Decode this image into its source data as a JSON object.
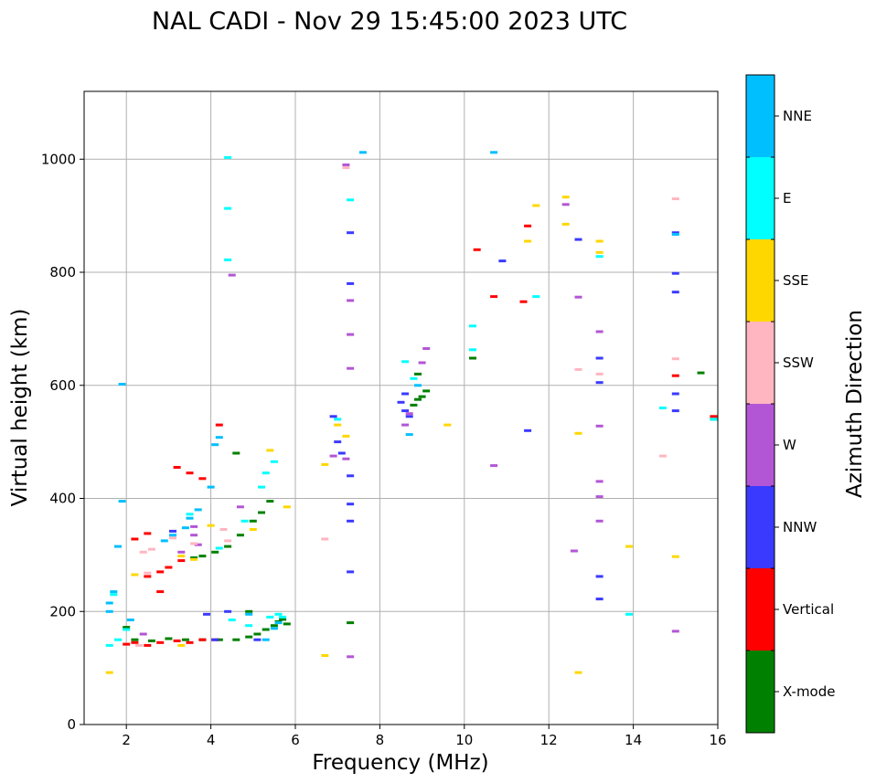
{
  "chart_data": {
    "type": "scatter",
    "title": "NAL CADI - Nov 29 15:45:00 2023 UTC",
    "xlabel": "Frequency (MHz)",
    "ylabel": "Virtual height (km)",
    "xlim": [
      1,
      16
    ],
    "ylim": [
      0,
      1120
    ],
    "xticks": [
      2,
      4,
      6,
      8,
      10,
      12,
      14,
      16
    ],
    "yticks": [
      0,
      200,
      400,
      600,
      800,
      1000
    ],
    "grid": true,
    "colorbar": {
      "label": "Azimuth Direction",
      "categories": [
        {
          "name": "X-mode",
          "color": "#008000"
        },
        {
          "name": "Vertical",
          "color": "#ff0000"
        },
        {
          "name": "NNW",
          "color": "#3a3aff"
        },
        {
          "name": "W",
          "color": "#b356d6"
        },
        {
          "name": "SSW",
          "color": "#ffb6c1"
        },
        {
          "name": "SSE",
          "color": "#ffd700"
        },
        {
          "name": "E",
          "color": "#00ffff"
        },
        {
          "name": "NNE",
          "color": "#00bfff"
        }
      ]
    },
    "series": [
      {
        "name": "X-mode",
        "points": [
          [
            2.2,
            150
          ],
          [
            2.6,
            148
          ],
          [
            3.0,
            152
          ],
          [
            3.4,
            150
          ],
          [
            3.8,
            150
          ],
          [
            4.2,
            150
          ],
          [
            4.6,
            150
          ],
          [
            4.9,
            155
          ],
          [
            5.1,
            160
          ],
          [
            5.3,
            168
          ],
          [
            5.5,
            175
          ],
          [
            5.6,
            182
          ],
          [
            5.7,
            186
          ],
          [
            5.8,
            178
          ],
          [
            3.6,
            295
          ],
          [
            3.8,
            298
          ],
          [
            4.1,
            305
          ],
          [
            4.4,
            315
          ],
          [
            4.7,
            335
          ],
          [
            5.0,
            360
          ],
          [
            5.2,
            375
          ],
          [
            5.4,
            395
          ],
          [
            8.9,
            575
          ],
          [
            9.0,
            580
          ],
          [
            9.1,
            590
          ],
          [
            8.8,
            565
          ],
          [
            8.9,
            620
          ],
          [
            10.2,
            648
          ],
          [
            7.3,
            180
          ],
          [
            15.9,
            540
          ],
          [
            15.6,
            622
          ],
          [
            4.6,
            480
          ],
          [
            4.9,
            200
          ],
          [
            2.0,
            172
          ]
        ]
      },
      {
        "name": "Vertical",
        "points": [
          [
            2.0,
            142
          ],
          [
            2.2,
            145
          ],
          [
            2.5,
            140
          ],
          [
            2.8,
            145
          ],
          [
            3.2,
            148
          ],
          [
            3.5,
            145
          ],
          [
            3.8,
            150
          ],
          [
            4.1,
            150
          ],
          [
            2.5,
            262
          ],
          [
            2.8,
            270
          ],
          [
            3.0,
            278
          ],
          [
            3.3,
            290
          ],
          [
            2.2,
            328
          ],
          [
            2.5,
            338
          ],
          [
            3.5,
            445
          ],
          [
            3.8,
            435
          ],
          [
            2.8,
            235
          ],
          [
            10.3,
            840
          ],
          [
            10.7,
            757
          ],
          [
            11.4,
            748
          ],
          [
            11.5,
            882
          ],
          [
            15.0,
            617
          ],
          [
            15.9,
            545
          ],
          [
            3.2,
            455
          ],
          [
            4.2,
            530
          ]
        ]
      },
      {
        "name": "NNW",
        "points": [
          [
            8.5,
            570
          ],
          [
            8.6,
            555
          ],
          [
            8.7,
            545
          ],
          [
            8.6,
            585
          ],
          [
            4.1,
            150
          ],
          [
            4.4,
            200
          ],
          [
            5.1,
            150
          ],
          [
            3.9,
            195
          ],
          [
            7.1,
            480
          ],
          [
            7.0,
            500
          ],
          [
            7.3,
            440
          ],
          [
            7.3,
            390
          ],
          [
            7.3,
            360
          ],
          [
            7.3,
            270
          ],
          [
            7.3,
            870
          ],
          [
            7.3,
            780
          ],
          [
            10.9,
            820
          ],
          [
            11.5,
            520
          ],
          [
            12.7,
            858
          ],
          [
            13.2,
            648
          ],
          [
            13.2,
            605
          ],
          [
            13.2,
            262
          ],
          [
            13.2,
            222
          ],
          [
            15.0,
            870
          ],
          [
            15.0,
            798
          ],
          [
            15.0,
            765
          ],
          [
            15.0,
            585
          ],
          [
            15.0,
            555
          ],
          [
            6.9,
            545
          ],
          [
            3.1,
            342
          ]
        ]
      },
      {
        "name": "W",
        "points": [
          [
            8.7,
            550
          ],
          [
            9.0,
            640
          ],
          [
            9.1,
            665
          ],
          [
            8.6,
            530
          ],
          [
            7.2,
            470
          ],
          [
            6.9,
            475
          ],
          [
            3.3,
            305
          ],
          [
            3.6,
            335
          ],
          [
            4.7,
            385
          ],
          [
            4.5,
            795
          ],
          [
            12.4,
            920
          ],
          [
            12.7,
            756
          ],
          [
            12.6,
            307
          ],
          [
            13.2,
            695
          ],
          [
            13.2,
            528
          ],
          [
            13.2,
            430
          ],
          [
            13.2,
            403
          ],
          [
            13.2,
            360
          ],
          [
            15.0,
            165
          ],
          [
            7.3,
            120
          ],
          [
            7.3,
            690
          ],
          [
            7.3,
            630
          ],
          [
            7.3,
            750
          ],
          [
            10.7,
            458
          ],
          [
            7.2,
            990
          ],
          [
            3.6,
            350
          ],
          [
            2.4,
            160
          ],
          [
            3.7,
            318
          ]
        ]
      },
      {
        "name": "SSW",
        "points": [
          [
            2.4,
            305
          ],
          [
            2.6,
            310
          ],
          [
            2.5,
            268
          ],
          [
            3.1,
            330
          ],
          [
            3.6,
            320
          ],
          [
            4.3,
            345
          ],
          [
            6.7,
            328
          ],
          [
            12.7,
            628
          ],
          [
            13.2,
            620
          ],
          [
            15.0,
            647
          ],
          [
            14.7,
            475
          ],
          [
            15.0,
            930
          ],
          [
            7.2,
            985
          ],
          [
            4.4,
            325
          ],
          [
            2.3,
            140
          ]
        ]
      },
      {
        "name": "SSE",
        "points": [
          [
            2.2,
            265
          ],
          [
            3.3,
            298
          ],
          [
            3.6,
            292
          ],
          [
            5.0,
            345
          ],
          [
            5.4,
            485
          ],
          [
            5.8,
            385
          ],
          [
            6.7,
            460
          ],
          [
            7.0,
            530
          ],
          [
            7.2,
            510
          ],
          [
            6.7,
            122
          ],
          [
            9.6,
            530
          ],
          [
            11.7,
            918
          ],
          [
            11.5,
            855
          ],
          [
            12.4,
            885
          ],
          [
            12.4,
            933
          ],
          [
            12.7,
            515
          ],
          [
            12.7,
            92
          ],
          [
            13.2,
            855
          ],
          [
            13.2,
            835
          ],
          [
            13.9,
            315
          ],
          [
            15.0,
            297
          ],
          [
            1.6,
            92
          ],
          [
            4.0,
            352
          ],
          [
            3.3,
            140
          ]
        ]
      },
      {
        "name": "E",
        "points": [
          [
            1.6,
            140
          ],
          [
            1.8,
            150
          ],
          [
            2.0,
            168
          ],
          [
            4.4,
            1003
          ],
          [
            4.4,
            913
          ],
          [
            4.4,
            822
          ],
          [
            5.2,
            420
          ],
          [
            5.3,
            445
          ],
          [
            5.5,
            465
          ],
          [
            4.8,
            360
          ],
          [
            4.5,
            185
          ],
          [
            5.4,
            190
          ],
          [
            5.6,
            195
          ],
          [
            5.7,
            190
          ],
          [
            8.8,
            612
          ],
          [
            8.6,
            642
          ],
          [
            7.3,
            928
          ],
          [
            10.2,
            705
          ],
          [
            10.2,
            663
          ],
          [
            11.7,
            757
          ],
          [
            13.2,
            828
          ],
          [
            13.9,
            195
          ],
          [
            14.7,
            560
          ],
          [
            15.9,
            540
          ],
          [
            1.7,
            230
          ],
          [
            4.2,
            312
          ],
          [
            3.5,
            372
          ],
          [
            4.9,
            175
          ],
          [
            7.0,
            540
          ]
        ]
      },
      {
        "name": "NNE",
        "points": [
          [
            1.6,
            215
          ],
          [
            1.7,
            235
          ],
          [
            1.8,
            315
          ],
          [
            1.9,
            395
          ],
          [
            1.9,
            602
          ],
          [
            2.9,
            325
          ],
          [
            3.1,
            335
          ],
          [
            3.4,
            348
          ],
          [
            3.5,
            365
          ],
          [
            3.7,
            380
          ],
          [
            4.0,
            420
          ],
          [
            4.1,
            495
          ],
          [
            4.2,
            508
          ],
          [
            5.3,
            150
          ],
          [
            5.5,
            170
          ],
          [
            5.6,
            180
          ],
          [
            4.9,
            195
          ],
          [
            7.6,
            1012
          ],
          [
            10.7,
            1012
          ],
          [
            8.7,
            513
          ],
          [
            15.0,
            867
          ],
          [
            8.9,
            600
          ],
          [
            2.1,
            185
          ],
          [
            1.6,
            200
          ]
        ]
      }
    ]
  }
}
